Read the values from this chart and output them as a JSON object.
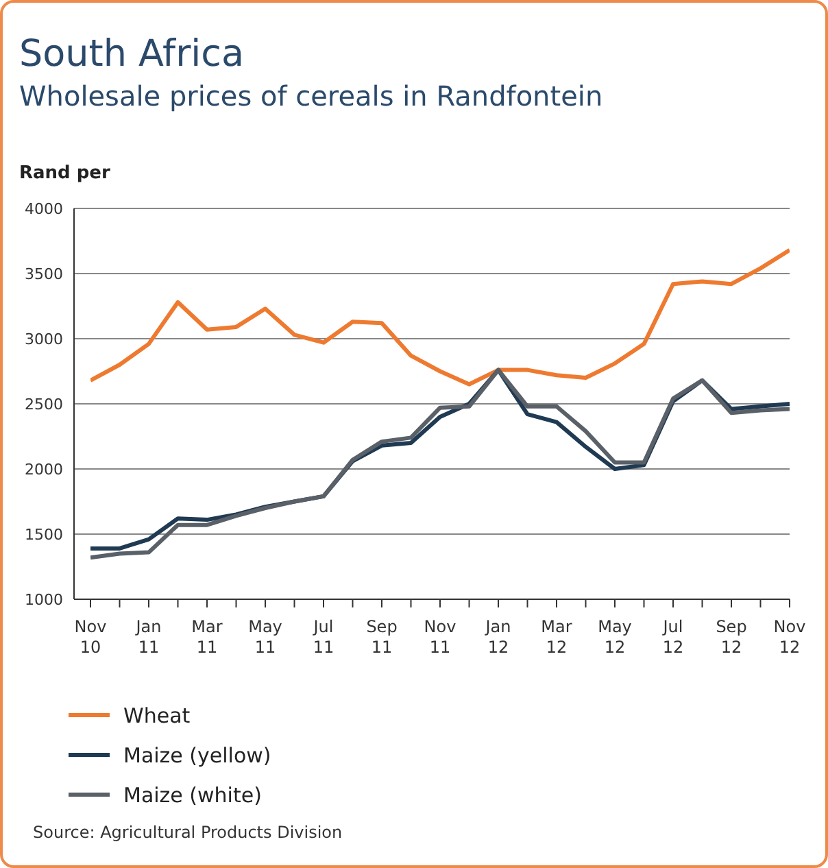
{
  "chart_data": {
    "type": "line",
    "title": "South Africa",
    "subtitle": "Wholesale prices of cereals in Randfontein",
    "ylabel": "Rand per",
    "categories": [
      "Nov 10",
      null,
      "Jan 11",
      null,
      "Mar 11",
      null,
      "May 11",
      null,
      "Jul 11",
      null,
      "Sep 11",
      null,
      "Nov 11",
      null,
      "Jan 12",
      null,
      "Mar 12",
      null,
      "May 12",
      null,
      "Jul 12",
      null,
      "Sep 12",
      null,
      "Nov 12"
    ],
    "series": [
      {
        "name": "Wheat",
        "color": "#ee7a30",
        "values": [
          2680,
          2800,
          2960,
          3280,
          3070,
          3090,
          3230,
          3030,
          2970,
          3130,
          3120,
          2870,
          2750,
          2650,
          2760,
          2760,
          2720,
          2700,
          2810,
          2960,
          3420,
          3440,
          3420,
          3540,
          3680
        ]
      },
      {
        "name": "Maize (yellow)",
        "color": "#1f3a52",
        "values": [
          1390,
          1390,
          1460,
          1620,
          1610,
          1650,
          1710,
          1750,
          1790,
          2060,
          2180,
          2200,
          2400,
          2500,
          2760,
          2420,
          2360,
          2170,
          2000,
          2030,
          2520,
          2680,
          2460,
          2480,
          2500
        ]
      },
      {
        "name": "Maize (white)",
        "color": "#5a6068",
        "values": [
          1320,
          1350,
          1360,
          1570,
          1570,
          1640,
          1700,
          1750,
          1790,
          2070,
          2210,
          2240,
          2470,
          2480,
          2760,
          2480,
          2480,
          2290,
          2050,
          2050,
          2540,
          2680,
          2430,
          2450,
          2460
        ]
      }
    ],
    "ylim": [
      1000,
      4000
    ],
    "yticks": [
      1000,
      1500,
      2000,
      2500,
      3000,
      3500,
      4000
    ],
    "grid": "y",
    "legend": "bottom left",
    "marker": "none",
    "line_style": "solid",
    "annotations": [
      "Source: Agricultural Products Division"
    ]
  }
}
